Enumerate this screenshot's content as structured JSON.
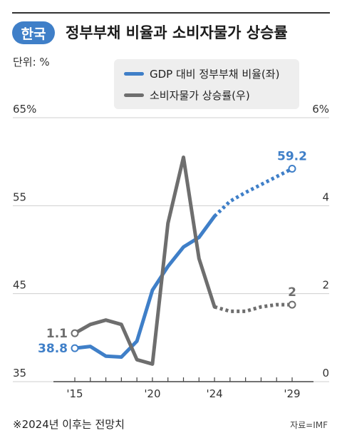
{
  "header": {
    "badge": "한국",
    "title": "정부부채 비율과 소비자물가 상승률"
  },
  "unit_label": "단위: %",
  "footnote": "※2024년 이후는 전망치",
  "source": "자료=IMF",
  "colors": {
    "blue": "#3f7fc8",
    "gray": "#6e6e6e",
    "legend_bg": "#eeeeee"
  },
  "chart_data": {
    "type": "line",
    "x_ticks": [
      {
        "value": 2015,
        "label": "'15"
      },
      {
        "value": 2020,
        "label": "'20"
      },
      {
        "value": 2024,
        "label": "'24"
      },
      {
        "value": 2029,
        "label": "'29"
      }
    ],
    "left_axis": {
      "ylim": [
        35,
        65
      ],
      "ticks": [
        {
          "value": 35,
          "label": "35"
        },
        {
          "value": 45,
          "label": "45"
        },
        {
          "value": 55,
          "label": "55"
        },
        {
          "value": 65,
          "label": "65%"
        }
      ]
    },
    "right_axis": {
      "ylim": [
        0,
        6
      ],
      "ticks": [
        {
          "value": 0,
          "label": "0"
        },
        {
          "value": 2,
          "label": "2"
        },
        {
          "value": 4,
          "label": "4"
        },
        {
          "value": 6,
          "label": "6%"
        }
      ]
    },
    "forecast_from": 2024,
    "legend_position": "top-right",
    "series": [
      {
        "name": "GDP 대비 정부부채 비율(좌)",
        "axis": "left",
        "color": "#3f7fc8",
        "x": [
          2015,
          2016,
          2017,
          2018,
          2019,
          2020,
          2021,
          2022,
          2023,
          2024,
          2025,
          2026,
          2027,
          2028,
          2029
        ],
        "y": [
          38.8,
          39.0,
          37.9,
          37.8,
          39.6,
          45.4,
          48.1,
          50.3,
          51.4,
          53.8,
          55.5,
          56.5,
          57.4,
          58.3,
          59.2
        ],
        "start_label": "38.8",
        "end_label": "59.2"
      },
      {
        "name": "소비자물가 상승률(우)",
        "axis": "right",
        "color": "#6e6e6e",
        "x": [
          2015,
          2016,
          2017,
          2018,
          2019,
          2020,
          2021,
          2022,
          2023,
          2024,
          2025,
          2026,
          2027,
          2028,
          2029
        ],
        "y": [
          1.1,
          1.3,
          1.4,
          1.3,
          0.5,
          0.4,
          3.6,
          5.1,
          2.8,
          1.7,
          1.6,
          1.6,
          1.7,
          1.75,
          1.75
        ],
        "start_label": "1.1",
        "end_label": "2"
      }
    ]
  }
}
